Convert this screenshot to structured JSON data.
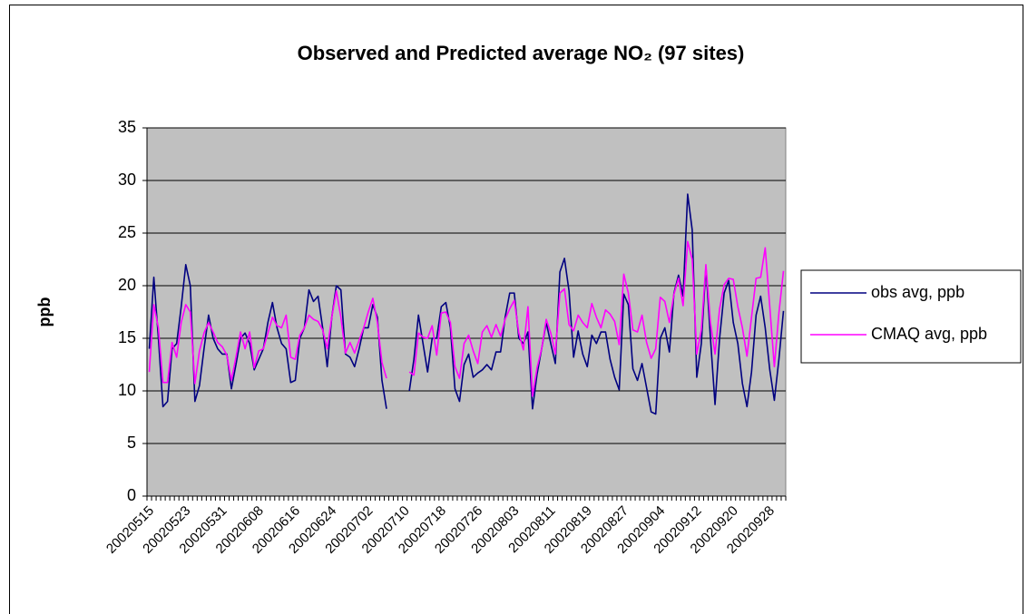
{
  "chart_data": {
    "type": "line",
    "title": "Observed and Predicted average NO₂ (97 sites)",
    "y_label": "ppb",
    "categories": [
      "20020515",
      null,
      null,
      null,
      null,
      null,
      null,
      null,
      "20020523",
      null,
      null,
      null,
      null,
      null,
      null,
      null,
      "20020531",
      null,
      null,
      null,
      null,
      null,
      null,
      null,
      "20020608",
      null,
      null,
      null,
      null,
      null,
      null,
      null,
      "20020616",
      null,
      null,
      null,
      null,
      null,
      null,
      null,
      "20020624",
      null,
      null,
      null,
      null,
      null,
      null,
      null,
      "20020702",
      null,
      null,
      null,
      null,
      null,
      null,
      null,
      "20020710",
      null,
      null,
      null,
      null,
      null,
      null,
      null,
      "20020718",
      null,
      null,
      null,
      null,
      null,
      null,
      null,
      "20020726",
      null,
      null,
      null,
      null,
      null,
      null,
      null,
      "20020803",
      null,
      null,
      null,
      null,
      null,
      null,
      null,
      "20020811",
      null,
      null,
      null,
      null,
      null,
      null,
      null,
      "20020819",
      null,
      null,
      null,
      null,
      null,
      null,
      null,
      "20020827",
      null,
      null,
      null,
      null,
      null,
      null,
      null,
      "20020904",
      null,
      null,
      null,
      null,
      null,
      null,
      null,
      "20020912",
      null,
      null,
      null,
      null,
      null,
      null,
      null,
      "20020920",
      null,
      null,
      null,
      null,
      null,
      null,
      null,
      "20020928",
      null,
      null,
      null
    ],
    "series": [
      {
        "name": "obs avg, ppb",
        "color": "#000080",
        "values": [
          14,
          20.8,
          15,
          8.5,
          9,
          14,
          14.5,
          18,
          22,
          20,
          9,
          10.5,
          14,
          17.2,
          15,
          14,
          13.5,
          13.5,
          10.2,
          12.5,
          15,
          15.5,
          14.5,
          12,
          13,
          14,
          16.5,
          18.4,
          16,
          14.5,
          14,
          10.8,
          11,
          15,
          16,
          19.6,
          18.5,
          19,
          16,
          12.3,
          17,
          20,
          19.6,
          13.5,
          13.2,
          12.3,
          14,
          16,
          16,
          18.2,
          17,
          11,
          8.3,
          null,
          null,
          null,
          null,
          10,
          13,
          17.2,
          14.5,
          11.8,
          15,
          15,
          18,
          18.4,
          16,
          10.2,
          9,
          12.5,
          13.5,
          11.3,
          11.7,
          12,
          12.5,
          12,
          13.7,
          13.7,
          17,
          19.3,
          19.3,
          15,
          14.5,
          15.6,
          8.3,
          11.6,
          14,
          16.5,
          14.5,
          12.6,
          21.3,
          22.6,
          19.5,
          13.2,
          15.7,
          13.5,
          12.3,
          15.3,
          14.5,
          15.6,
          15.6,
          13,
          11.3,
          10.1,
          19.2,
          18.2,
          12.1,
          11,
          12.6,
          10.3,
          8,
          7.8,
          15,
          16,
          13.7,
          19.3,
          21,
          19,
          28.7,
          25.3,
          11.3,
          14.5,
          21.8,
          15,
          8.7,
          15,
          19.3,
          20.5,
          16.5,
          14.5,
          10.7,
          8.5,
          11.8,
          17.2,
          19,
          16,
          12,
          9.1,
          13,
          17.6
        ]
      },
      {
        "name": "CMAQ avg, ppb",
        "color": "#ff00ff",
        "values": [
          11.8,
          18.2,
          16,
          10.8,
          10.8,
          14.6,
          13.2,
          16.5,
          18.2,
          17.5,
          10.7,
          13.8,
          15.5,
          16.5,
          15.6,
          14.6,
          14.2,
          13.4,
          11,
          13.2,
          15.6,
          14,
          15.6,
          12.2,
          13.8,
          14,
          15.5,
          17,
          16.2,
          16,
          17.2,
          13.2,
          13,
          15.3,
          16,
          17.2,
          16.8,
          16.6,
          15.8,
          14,
          17,
          19.5,
          17,
          13.6,
          14.6,
          13.6,
          14.8,
          16,
          17.5,
          18.8,
          16.5,
          12.7,
          11.2,
          null,
          null,
          null,
          null,
          11.8,
          11.5,
          15.5,
          15.1,
          15,
          16.2,
          13.4,
          17.4,
          17.5,
          16.5,
          12.3,
          11.2,
          14.5,
          15.3,
          13.8,
          12.6,
          15.6,
          16.2,
          15.1,
          16.3,
          15.2,
          16.8,
          17.8,
          18.6,
          15.5,
          13.9,
          18,
          9.5,
          12.2,
          14,
          16.8,
          15.5,
          13.5,
          19.3,
          19.7,
          16.3,
          15.7,
          17.2,
          16.5,
          16,
          18.3,
          17,
          16,
          17.7,
          17.3,
          16.6,
          14.4,
          21.1,
          19.3,
          15.8,
          15.6,
          17.2,
          14.6,
          13.1,
          14,
          18.9,
          18.5,
          16.5,
          19.2,
          20.7,
          18.1,
          24.2,
          22.5,
          13.5,
          15.8,
          22,
          16.5,
          13.5,
          17.8,
          20.1,
          20.7,
          20.6,
          18,
          16,
          13.3,
          17,
          20.7,
          20.8,
          23.6,
          18,
          12.3,
          17.4,
          21.4
        ]
      }
    ],
    "ylim": [
      0,
      35
    ],
    "yticks": [
      0,
      5,
      10,
      15,
      20,
      25,
      30,
      35
    ],
    "grid": true,
    "plot_background": "#c0c0c0",
    "legend": "right"
  }
}
